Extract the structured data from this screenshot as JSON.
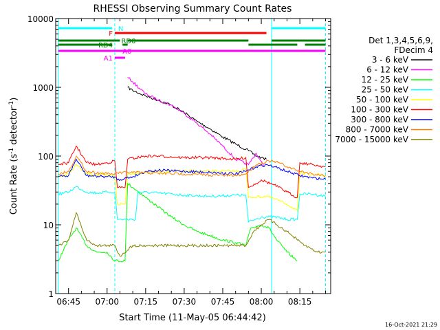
{
  "chart_data": {
    "type": "line",
    "title": "RHESSI Observing Summary Count Rates",
    "xlabel": "Start Time (11-May-05 06:44:42)",
    "ylabel_main": "Count Rate (s",
    "ylabel_sup1": "-1",
    "ylabel_mid": " detector",
    "ylabel_sup2": "-1",
    "ylabel_end": ")",
    "xlim": [
      "06:40",
      "08:27"
    ],
    "yscale": "log",
    "ylim": [
      1,
      10000
    ],
    "x_ticks": [
      "06:45",
      "07:00",
      "07:15",
      "07:30",
      "07:45",
      "08:00",
      "08:15"
    ],
    "y_ticks": [
      "1",
      "10",
      "100",
      "1000",
      "10000"
    ],
    "legend": {
      "placement": "right",
      "header": [
        "Det 1,3,4,5,6,9,",
        "FDecim 4"
      ],
      "entries": [
        {
          "label": "3 - 6 keV",
          "color": "#000000"
        },
        {
          "label": "6 - 12 keV",
          "color": "#ff00ff"
        },
        {
          "label": "12 - 25 keV",
          "color": "#00ff00"
        },
        {
          "label": "25 - 50 keV",
          "color": "#00ffff"
        },
        {
          "label": "50 - 100 keV",
          "color": "#ffff00"
        },
        {
          "label": "100 - 300 keV",
          "color": "#ff0000"
        },
        {
          "label": "300 - 800 keV",
          "color": "#0000ff"
        },
        {
          "label": "800 - 7000 keV",
          "color": "#ff8000"
        },
        {
          "label": "7000 - 15000 keV",
          "color": "#808000"
        }
      ]
    },
    "flags": [
      {
        "label": "N",
        "color": "#00ffff",
        "segments": [
          [
            "06:41",
            "07:02"
          ],
          [
            "08:04",
            "08:25"
          ]
        ]
      },
      {
        "label": "F",
        "color": "#ff0000",
        "segments": [
          [
            "07:03",
            "08:02"
          ]
        ]
      },
      {
        "label": "RD0",
        "color": "#008000",
        "segments": [
          [
            "06:41",
            "07:05"
          ],
          [
            "07:08",
            "07:55"
          ],
          [
            "08:04",
            "08:25"
          ]
        ]
      },
      {
        "label": "RD4",
        "color": "#008000",
        "segments": [
          [
            "06:41",
            "07:02"
          ],
          [
            "07:06",
            "07:08"
          ],
          [
            "07:55",
            "08:14"
          ],
          [
            "08:17",
            "08:25"
          ]
        ]
      },
      {
        "label": "A0",
        "color": "#ff00ff",
        "segments": [
          [
            "06:41",
            "08:25"
          ]
        ]
      },
      {
        "label": "A1",
        "color": "#ff00ff",
        "segments": [
          [
            "07:03",
            "07:07"
          ]
        ]
      }
    ],
    "vlines": [
      {
        "x": "06:41",
        "color": "#00ffff",
        "style": "solid"
      },
      {
        "x": "07:03",
        "color": "#00ffff",
        "style": "dashed"
      },
      {
        "x": "08:04",
        "color": "#00ffff",
        "style": "solid"
      },
      {
        "x": "08:25",
        "color": "#00ffff",
        "style": "dashed"
      }
    ],
    "series": [
      {
        "name": "3 - 6 keV",
        "color": "#000000",
        "points": [
          [
            "07:08",
            1000
          ],
          [
            "07:10",
            900
          ],
          [
            "07:15",
            750
          ],
          [
            "07:20",
            650
          ],
          [
            "07:25",
            550
          ],
          [
            "07:30",
            430
          ],
          [
            "07:35",
            320
          ],
          [
            "07:40",
            250
          ],
          [
            "07:45",
            190
          ],
          [
            "07:50",
            150
          ],
          [
            "07:55",
            120
          ],
          [
            "07:58",
            100
          ],
          [
            "08:00",
            95
          ],
          [
            "08:02",
            90
          ]
        ]
      },
      {
        "name": "6 - 12 keV",
        "color": "#ff00ff",
        "points": [
          [
            "07:08",
            1400
          ],
          [
            "07:10",
            1200
          ],
          [
            "07:15",
            800
          ],
          [
            "07:20",
            650
          ],
          [
            "07:25",
            550
          ],
          [
            "07:30",
            420
          ],
          [
            "07:35",
            300
          ],
          [
            "07:40",
            210
          ],
          [
            "07:45",
            140
          ],
          [
            "07:50",
            90
          ],
          [
            "07:55",
            75
          ],
          [
            "07:58",
            110
          ],
          [
            "08:01",
            70
          ]
        ]
      },
      {
        "name": "12 - 25 keV",
        "color": "#00ff00",
        "points": [
          [
            "06:41",
            3
          ],
          [
            "06:45",
            6
          ],
          [
            "06:48",
            9
          ],
          [
            "06:52",
            5
          ],
          [
            "06:56",
            4
          ],
          [
            "07:00",
            4
          ],
          [
            "07:03",
            3
          ],
          [
            "07:07",
            3
          ],
          [
            "07:08",
            40
          ],
          [
            "07:10",
            35
          ],
          [
            "07:15",
            25
          ],
          [
            "07:20",
            18
          ],
          [
            "07:25",
            13
          ],
          [
            "07:30",
            10
          ],
          [
            "07:35",
            8
          ],
          [
            "07:40",
            7
          ],
          [
            "07:45",
            6
          ],
          [
            "07:50",
            5.5
          ],
          [
            "07:54",
            5
          ],
          [
            "07:56",
            9
          ],
          [
            "08:00",
            10
          ],
          [
            "08:03",
            9
          ],
          [
            "08:06",
            6
          ],
          [
            "08:10",
            4
          ],
          [
            "08:14",
            3
          ]
        ]
      },
      {
        "name": "25 - 50 keV",
        "color": "#00ffff",
        "points": [
          [
            "06:41",
            28
          ],
          [
            "06:45",
            30
          ],
          [
            "06:48",
            36
          ],
          [
            "06:52",
            30
          ],
          [
            "06:56",
            29
          ],
          [
            "07:00",
            30
          ],
          [
            "07:03",
            30
          ],
          [
            "07:04",
            12
          ],
          [
            "07:11",
            12
          ],
          [
            "07:12",
            30
          ],
          [
            "07:20",
            29
          ],
          [
            "07:30",
            27
          ],
          [
            "07:40",
            26
          ],
          [
            "07:50",
            27
          ],
          [
            "07:54",
            27
          ],
          [
            "07:55",
            11
          ],
          [
            "08:00",
            13
          ],
          [
            "08:05",
            13
          ],
          [
            "08:10",
            12
          ],
          [
            "08:14",
            12
          ],
          [
            "08:15",
            28
          ],
          [
            "08:20",
            28
          ],
          [
            "08:25",
            26
          ]
        ]
      },
      {
        "name": "50 - 100 keV",
        "color": "#ffff00",
        "points": [
          [
            "06:41",
            50
          ],
          [
            "06:45",
            55
          ],
          [
            "06:48",
            75
          ],
          [
            "06:52",
            55
          ],
          [
            "07:00",
            52
          ],
          [
            "07:03",
            52
          ],
          [
            "07:04",
            20
          ],
          [
            "07:07",
            20
          ],
          [
            "07:08",
            55
          ],
          [
            "07:20",
            60
          ],
          [
            "07:30",
            60
          ],
          [
            "07:40",
            60
          ],
          [
            "07:50",
            60
          ],
          [
            "07:54",
            65
          ],
          [
            "07:55",
            25
          ],
          [
            "08:02",
            26
          ],
          [
            "08:05",
            24
          ],
          [
            "08:10",
            20
          ],
          [
            "08:14",
            16
          ],
          [
            "08:15",
            55
          ],
          [
            "08:20",
            55
          ],
          [
            "08:25",
            52
          ]
        ]
      },
      {
        "name": "100 - 300 keV",
        "color": "#ff0000",
        "points": [
          [
            "06:41",
            75
          ],
          [
            "06:45",
            80
          ],
          [
            "06:48",
            140
          ],
          [
            "06:52",
            80
          ],
          [
            "06:56",
            75
          ],
          [
            "07:00",
            80
          ],
          [
            "07:03",
            85
          ],
          [
            "07:04",
            35
          ],
          [
            "07:07",
            35
          ],
          [
            "07:08",
            90
          ],
          [
            "07:15",
            100
          ],
          [
            "07:20",
            100
          ],
          [
            "07:30",
            95
          ],
          [
            "07:40",
            95
          ],
          [
            "07:50",
            90
          ],
          [
            "07:54",
            95
          ],
          [
            "07:55",
            35
          ],
          [
            "07:58",
            40
          ],
          [
            "08:00",
            45
          ],
          [
            "08:05",
            38
          ],
          [
            "08:10",
            30
          ],
          [
            "08:14",
            25
          ],
          [
            "08:15",
            80
          ],
          [
            "08:20",
            75
          ],
          [
            "08:25",
            70
          ]
        ]
      },
      {
        "name": "300 - 800 keV",
        "color": "#0000ff",
        "points": [
          [
            "06:41",
            50
          ],
          [
            "06:45",
            52
          ],
          [
            "06:48",
            90
          ],
          [
            "06:52",
            52
          ],
          [
            "07:00",
            50
          ],
          [
            "07:03",
            50
          ],
          [
            "07:04",
            45
          ],
          [
            "07:10",
            50
          ],
          [
            "07:15",
            60
          ],
          [
            "07:20",
            62
          ],
          [
            "07:30",
            60
          ],
          [
            "07:40",
            58
          ],
          [
            "07:50",
            55
          ],
          [
            "07:54",
            60
          ],
          [
            "07:58",
            70
          ],
          [
            "08:02",
            75
          ],
          [
            "08:05",
            70
          ],
          [
            "08:10",
            60
          ],
          [
            "08:15",
            52
          ],
          [
            "08:20",
            48
          ],
          [
            "08:25",
            46
          ]
        ]
      },
      {
        "name": "800 - 7000 keV",
        "color": "#ff8000",
        "points": [
          [
            "06:41",
            55
          ],
          [
            "06:45",
            60
          ],
          [
            "06:48",
            100
          ],
          [
            "06:52",
            60
          ],
          [
            "07:00",
            55
          ],
          [
            "07:03",
            55
          ],
          [
            "07:04",
            57
          ],
          [
            "07:10",
            58
          ],
          [
            "07:20",
            56
          ],
          [
            "07:30",
            55
          ],
          [
            "07:40",
            53
          ],
          [
            "07:50",
            52
          ],
          [
            "07:54",
            55
          ],
          [
            "07:58",
            75
          ],
          [
            "08:03",
            85
          ],
          [
            "08:07",
            80
          ],
          [
            "08:10",
            70
          ],
          [
            "08:15",
            60
          ],
          [
            "08:20",
            55
          ],
          [
            "08:25",
            52
          ]
        ]
      },
      {
        "name": "7000 - 15000 keV",
        "color": "#808000",
        "points": [
          [
            "06:41",
            5
          ],
          [
            "06:45",
            6
          ],
          [
            "06:48",
            15
          ],
          [
            "06:52",
            6
          ],
          [
            "06:56",
            5
          ],
          [
            "07:00",
            5
          ],
          [
            "07:03",
            5
          ],
          [
            "07:05",
            3.5
          ],
          [
            "07:10",
            5
          ],
          [
            "07:20",
            5
          ],
          [
            "07:30",
            5
          ],
          [
            "07:40",
            5
          ],
          [
            "07:50",
            5
          ],
          [
            "07:54",
            5
          ],
          [
            "07:57",
            8
          ],
          [
            "08:00",
            10
          ],
          [
            "08:03",
            12
          ],
          [
            "08:06",
            10
          ],
          [
            "08:10",
            8
          ],
          [
            "08:14",
            6
          ],
          [
            "08:17",
            5
          ],
          [
            "08:22",
            4
          ],
          [
            "08:25",
            4
          ]
        ]
      }
    ]
  },
  "footer": {
    "timestamp": "16-Oct-2021 21:29"
  }
}
